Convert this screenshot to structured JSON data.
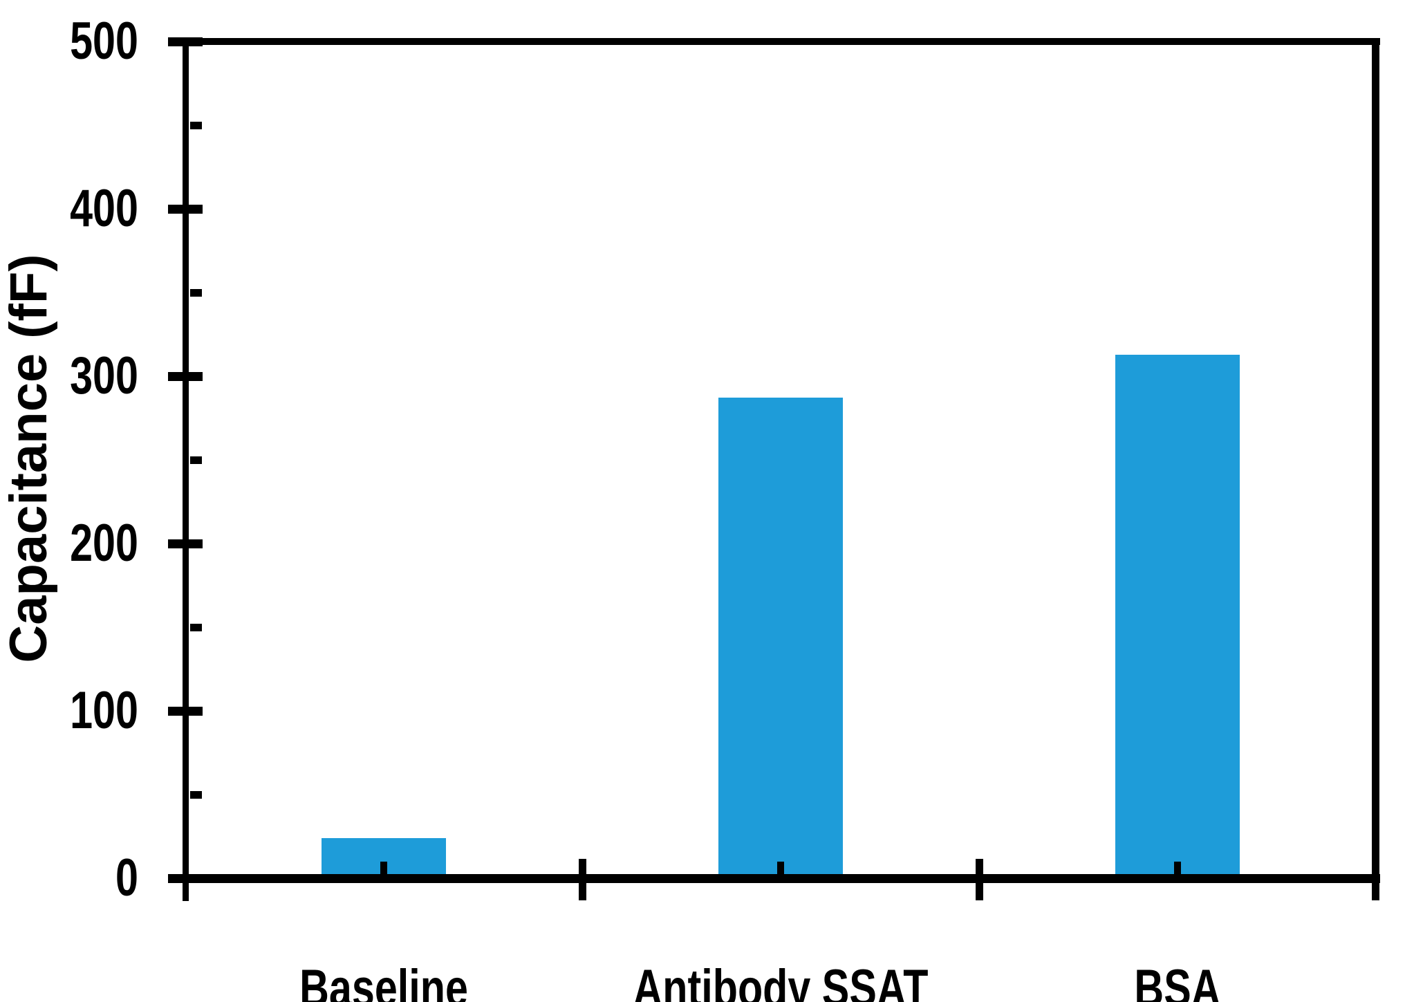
{
  "chart_data": {
    "type": "bar",
    "title": "",
    "xlabel": "",
    "ylabel": "Capacitance (fF)",
    "categories": [
      "Baseline",
      "Antibody SSAT",
      "BSA"
    ],
    "values": [
      24,
      287,
      313
    ],
    "unit": "fF",
    "ylim": [
      0,
      500
    ],
    "y_major_ticks": [
      0,
      100,
      200,
      300,
      400,
      500
    ],
    "y_minor_tick_step": 50,
    "grid": false,
    "legend": null,
    "bar_color": "#1E9CD9",
    "axis_color": "#000000",
    "background_color": "#FFFFFF",
    "label_color": "#000000"
  }
}
